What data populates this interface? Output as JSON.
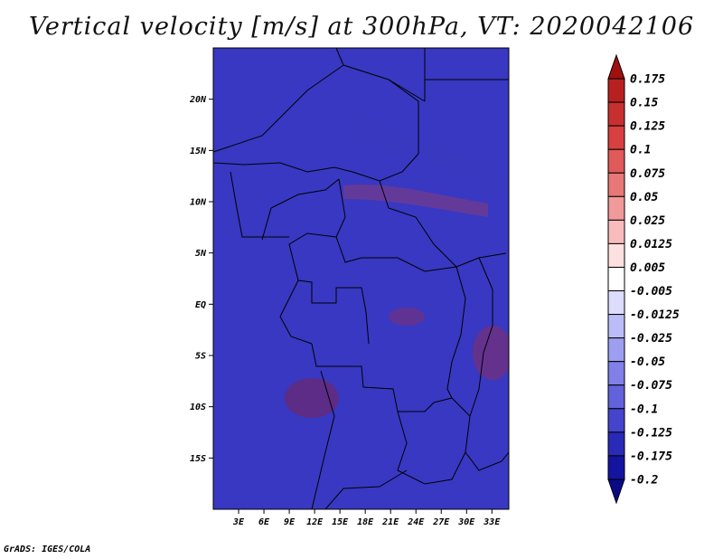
{
  "title": "Vertical velocity [m/s] at 300hPa, VT: 2020042106",
  "credit": "GrADS: IGES/COLA",
  "map": {
    "lon_range": [
      0,
      35
    ],
    "lat_range": [
      -20,
      25
    ],
    "lon_ticks": [
      {
        "value": 3,
        "label": "3E"
      },
      {
        "value": 6,
        "label": "6E"
      },
      {
        "value": 9,
        "label": "9E"
      },
      {
        "value": 12,
        "label": "12E"
      },
      {
        "value": 15,
        "label": "15E"
      },
      {
        "value": 18,
        "label": "18E"
      },
      {
        "value": 21,
        "label": "21E"
      },
      {
        "value": 24,
        "label": "24E"
      },
      {
        "value": 27,
        "label": "27E"
      },
      {
        "value": 30,
        "label": "30E"
      },
      {
        "value": 33,
        "label": "33E"
      }
    ],
    "lat_ticks": [
      {
        "value": 20,
        "label": "20N"
      },
      {
        "value": 15,
        "label": "15N"
      },
      {
        "value": 10,
        "label": "10N"
      },
      {
        "value": 5,
        "label": "5N"
      },
      {
        "value": 0,
        "label": "EQ"
      },
      {
        "value": -5,
        "label": "5S"
      },
      {
        "value": -10,
        "label": "10S"
      },
      {
        "value": -15,
        "label": "15S"
      }
    ]
  },
  "colorbar": {
    "levels": [
      "0.175",
      "0.15",
      "0.125",
      "0.1",
      "0.075",
      "0.05",
      "0.025",
      "0.0125",
      "0.005",
      "-0.005",
      "-0.0125",
      "-0.025",
      "-0.05",
      "-0.075",
      "-0.1",
      "-0.125",
      "-0.175",
      "-0.2"
    ],
    "colors": [
      "#a01010",
      "#b82020",
      "#c83030",
      "#d84040",
      "#e05a5a",
      "#e87878",
      "#f09a9a",
      "#f8bcbc",
      "#fde0e0",
      "#ffffff",
      "#dcdcfc",
      "#bcbcf8",
      "#9e9ef0",
      "#8080e8",
      "#6262dc",
      "#4444cc",
      "#2a2ab8",
      "#1414a0",
      "#0a0a88"
    ]
  },
  "colors": {
    "frame": "#000000",
    "background": "#ffffff"
  }
}
